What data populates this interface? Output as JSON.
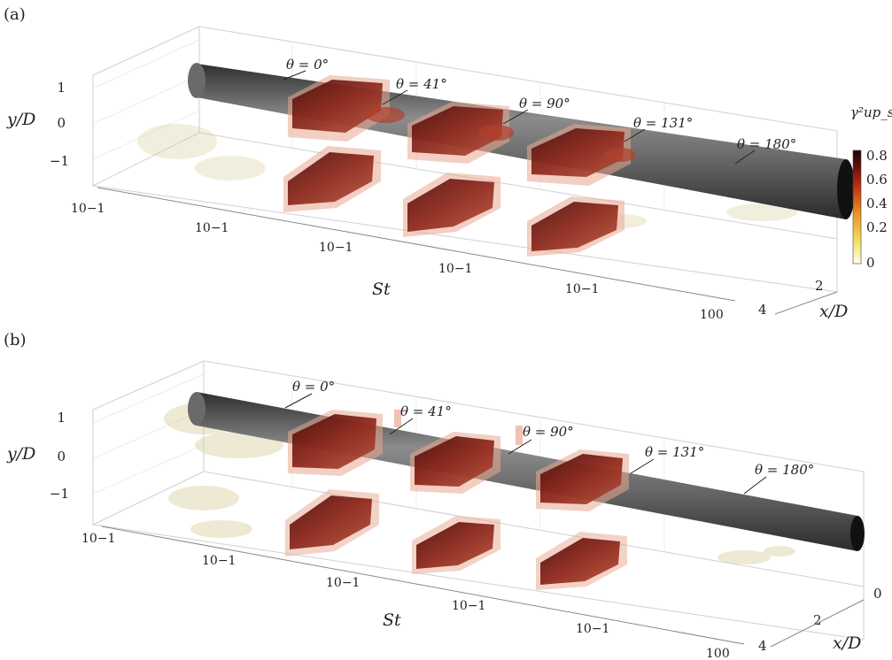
{
  "panels": [
    {
      "label": "(a)",
      "angles": [
        "θ = 0°",
        "θ = 41°",
        "θ = 90°",
        "θ = 131°",
        "θ = 180°"
      ],
      "y_axis": {
        "label": "y/D",
        "ticks": [
          "1",
          "0",
          "−1"
        ]
      },
      "st_axis": {
        "label": "St",
        "ticks": [
          "10−1",
          "10−1",
          "10−1",
          "10−1",
          "10−1",
          "100"
        ]
      },
      "x_axis": {
        "label": "x/D",
        "ticks": [
          "2",
          "4"
        ]
      },
      "colorbar": {
        "label": "γ²up_s",
        "ticks": [
          "0.8",
          "0.6",
          "0.4",
          "0.2",
          "0"
        ]
      }
    },
    {
      "label": "(b)",
      "angles": [
        "θ = 0°",
        "θ = 41°",
        "θ = 90°",
        "θ = 131°",
        "θ = 180°"
      ],
      "y_axis": {
        "label": "y/D",
        "ticks": [
          "1",
          "0",
          "−1"
        ]
      },
      "st_axis": {
        "label": "St",
        "ticks": [
          "10−1",
          "10−1",
          "10−1",
          "10−1",
          "10−1",
          "100"
        ]
      },
      "x_axis": {
        "label": "x/D",
        "ticks": [
          "0",
          "2",
          "4"
        ]
      }
    }
  ],
  "colors": {
    "cylinder_dark": "#3a3a3a",
    "cylinder_light": "#9a9a9a",
    "blob_dark": "#6b1410",
    "blob_mid": "#a83a2a",
    "blob_light": "#e8a890",
    "faint": "#d8cfa0",
    "colormap": [
      "#ffffe0",
      "#f5e060",
      "#e8a020",
      "#c83818",
      "#7a1010",
      "#200505"
    ]
  }
}
